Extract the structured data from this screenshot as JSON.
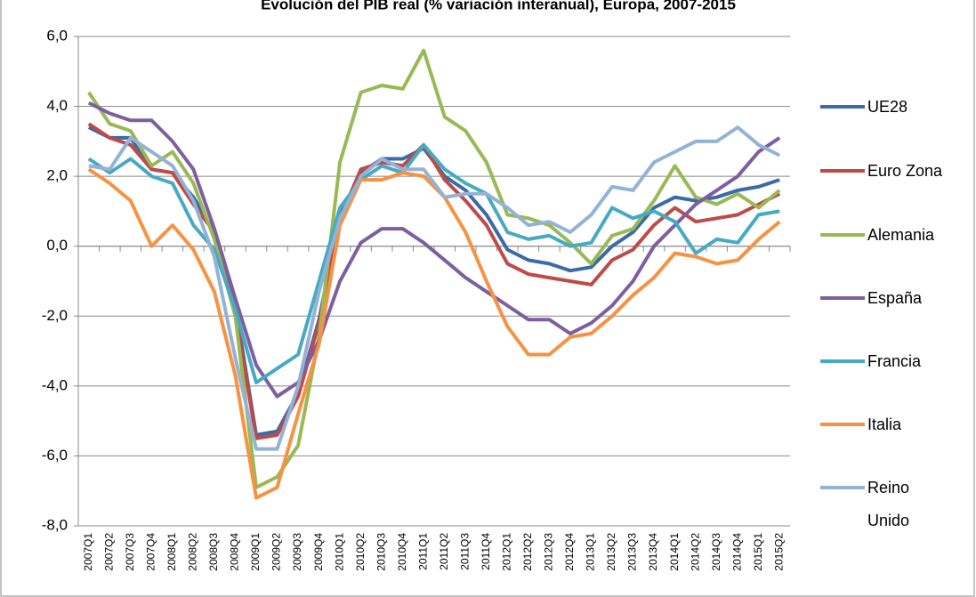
{
  "chart_data": {
    "type": "line",
    "title": "Evolución del PIB real (% variación interanual), Europa, 2007-2015",
    "categories": [
      "2007Q1",
      "2007Q2",
      "2007Q3",
      "2007Q4",
      "2008Q1",
      "2008Q2",
      "2008Q3",
      "2008Q4",
      "2009Q1",
      "2009Q2",
      "2009Q3",
      "2009Q4",
      "2010Q1",
      "2010Q2",
      "2010Q3",
      "2010Q4",
      "2011Q1",
      "2011Q2",
      "2011Q3",
      "2011Q4",
      "2012Q1",
      "2012Q2",
      "2012Q3",
      "2012Q4",
      "2013Q1",
      "2013Q2",
      "2013Q3",
      "2013Q4",
      "2014Q1",
      "2014Q2",
      "2014Q3",
      "2014Q4",
      "2015Q1",
      "2015Q2"
    ],
    "series": [
      {
        "name": "UE28",
        "color": "#3a6aa8",
        "values": [
          3.4,
          3.1,
          3.1,
          2.2,
          2.1,
          1.4,
          0.4,
          -1.7,
          -5.4,
          -5.3,
          -4.2,
          -2.1,
          0.9,
          2.1,
          2.5,
          2.5,
          2.8,
          2.0,
          1.6,
          0.9,
          -0.1,
          -0.4,
          -0.5,
          -0.7,
          -0.6,
          0.0,
          0.4,
          1.1,
          1.4,
          1.3,
          1.4,
          1.6,
          1.7,
          1.9
        ]
      },
      {
        "name": "Euro Zona",
        "color": "#be4b48",
        "values": [
          3.5,
          3.1,
          2.9,
          2.2,
          2.1,
          1.2,
          0.4,
          -1.9,
          -5.5,
          -5.4,
          -4.3,
          -2.2,
          0.8,
          2.2,
          2.4,
          2.3,
          2.9,
          1.9,
          1.3,
          0.6,
          -0.5,
          -0.8,
          -0.9,
          -1.0,
          -1.1,
          -0.4,
          -0.1,
          0.6,
          1.1,
          0.7,
          0.8,
          0.9,
          1.2,
          1.5
        ]
      },
      {
        "name": "Alemania",
        "color": "#98b954",
        "values": [
          4.4,
          3.5,
          3.3,
          2.3,
          2.7,
          1.8,
          0.2,
          -2.0,
          -6.9,
          -6.6,
          -5.7,
          -2.6,
          2.4,
          4.4,
          4.6,
          4.5,
          5.6,
          3.7,
          3.3,
          2.4,
          0.9,
          0.8,
          0.6,
          0.1,
          -0.5,
          0.3,
          0.5,
          1.3,
          2.3,
          1.4,
          1.2,
          1.5,
          1.1,
          1.6
        ]
      },
      {
        "name": "España",
        "color": "#7d5fa0",
        "values": [
          4.1,
          3.8,
          3.6,
          3.6,
          3.0,
          2.2,
          0.5,
          -1.5,
          -3.4,
          -4.3,
          -3.9,
          -2.7,
          -1.0,
          0.1,
          0.5,
          0.5,
          0.1,
          -0.4,
          -0.9,
          -1.3,
          -1.7,
          -2.1,
          -2.1,
          -2.5,
          -2.2,
          -1.7,
          -1.0,
          0.0,
          0.6,
          1.2,
          1.6,
          2.0,
          2.7,
          3.1
        ]
      },
      {
        "name": "Francia",
        "color": "#46aac4",
        "values": [
          2.5,
          2.1,
          2.5,
          2.0,
          1.8,
          0.6,
          -0.1,
          -1.8,
          -3.9,
          -3.5,
          -3.1,
          -1.0,
          1.1,
          1.9,
          2.3,
          2.1,
          2.9,
          2.2,
          1.8,
          1.5,
          0.4,
          0.2,
          0.3,
          0.0,
          0.1,
          1.1,
          0.8,
          1.0,
          0.7,
          -0.2,
          0.2,
          0.1,
          0.9,
          1.0
        ]
      },
      {
        "name": "Italia",
        "color": "#f59343",
        "values": [
          2.2,
          1.8,
          1.3,
          0.0,
          0.6,
          -0.1,
          -1.3,
          -3.7,
          -7.2,
          -6.9,
          -4.8,
          -2.8,
          0.6,
          1.9,
          1.9,
          2.1,
          2.0,
          1.4,
          0.4,
          -1.0,
          -2.3,
          -3.1,
          -3.1,
          -2.6,
          -2.5,
          -2.0,
          -1.4,
          -0.9,
          -0.2,
          -0.3,
          -0.5,
          -0.4,
          0.2,
          0.7
        ]
      },
      {
        "name": "Reino Unido",
        "color": "#94b2d6",
        "values": [
          2.3,
          2.2,
          3.1,
          2.7,
          2.3,
          1.3,
          -0.3,
          -3.2,
          -5.8,
          -5.8,
          -4.0,
          -1.3,
          0.8,
          2.0,
          2.5,
          2.2,
          2.2,
          1.4,
          1.5,
          1.5,
          1.1,
          0.6,
          0.7,
          0.4,
          0.9,
          1.7,
          1.6,
          2.4,
          2.7,
          3.0,
          3.0,
          3.4,
          2.9,
          2.6
        ]
      }
    ],
    "ylim": [
      -8,
      6
    ],
    "yticks": [
      {
        "value": -8,
        "label": "-8,0"
      },
      {
        "value": -6,
        "label": "-6,0"
      },
      {
        "value": -4,
        "label": "-4,0"
      },
      {
        "value": -2,
        "label": "-2,0"
      },
      {
        "value": 0,
        "label": "0,0"
      },
      {
        "value": 2,
        "label": "2,0"
      },
      {
        "value": 4,
        "label": "4,0"
      },
      {
        "value": 6,
        "label": "6,0"
      }
    ],
    "grid": true,
    "legend": "right"
  }
}
